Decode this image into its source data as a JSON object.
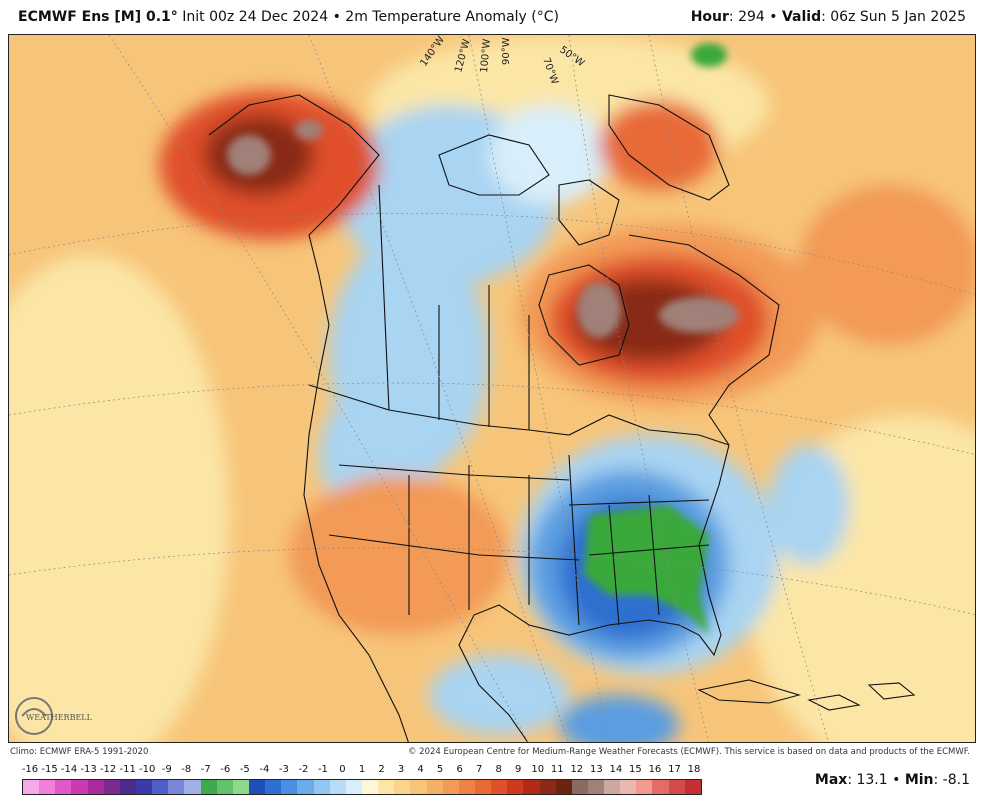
{
  "header": {
    "model_name": "ECMWF Ens [M] 0.1",
    "degree_mark": "°",
    "init_label": " Init 00z 24 Dec 2024 • 2m Temperature Anomaly (°C)",
    "hour_label": "Hour",
    "hour_value": ": 294 • ",
    "valid_label": "Valid",
    "valid_value": ": 06z Sun 5 Jan 2025"
  },
  "map": {
    "longitude_labels": [
      "140°W",
      "120°W",
      "100°W",
      "90°W",
      "70°W",
      "50°W"
    ],
    "palette": {
      "ocean_warm": "#f7c57a",
      "ocean_pale": "#fbe6a6",
      "cold_light": "#a9d4f2",
      "cold_mid": "#5a9de0",
      "cold_deep": "#2f6fd0",
      "very_cold": "#3aa83a",
      "warm_mid": "#f29a57",
      "warm_hot": "#e0502a",
      "warm_extreme": "#8a2a18",
      "warm_peak": "#a08078",
      "border": "#111111"
    }
  },
  "footer": {
    "climo": "Climo: ECMWF ERA-5 1991-2020",
    "copyright": "© 2024 European Centre for Medium-Range Weather Forecasts (ECMWF). This service is based on data and products of the ECMWF."
  },
  "scale": {
    "ticks": [
      "-16",
      "-15",
      "-14",
      "-13",
      "-12",
      "-11",
      "-10",
      "-9",
      "-8",
      "-7",
      "-6",
      "-5",
      "-4",
      "-3",
      "-2",
      "-1",
      "0",
      "1",
      "2",
      "3",
      "4",
      "5",
      "6",
      "7",
      "8",
      "9",
      "10",
      "11",
      "12",
      "13",
      "14",
      "15",
      "16",
      "17",
      "18"
    ],
    "colors": [
      "#f7a8e8",
      "#ef7fd9",
      "#e059c8",
      "#c93ab3",
      "#a92b9c",
      "#7d2a8e",
      "#4a2c8c",
      "#3a3aa8",
      "#4f5fc7",
      "#7c86d8",
      "#9fb0e4",
      "#3faa4a",
      "#62c16a",
      "#8fd68f",
      "#1f4fb8",
      "#2f6fd0",
      "#4a8ee0",
      "#6cabe9",
      "#92c6f0",
      "#b8dcf5",
      "#d8eefa",
      "#fdf6d8",
      "#fbe6a6",
      "#f8d58a",
      "#f7c57a",
      "#f4b066",
      "#f29a57",
      "#ee8346",
      "#e86a37",
      "#e0502a",
      "#cc3a20",
      "#b02a18",
      "#8a2a18",
      "#6a2410",
      "#8a6a62",
      "#a08078",
      "#c9a9a2",
      "#e9b9b0",
      "#f29a8e",
      "#e26d65",
      "#d24c4a",
      "#c42e35"
    ]
  },
  "maxmin": {
    "max_label": "Max",
    "max_value": ": 13.1 • ",
    "min_label": "Min",
    "min_value": ": -8.1"
  },
  "logo": {
    "text": "WEATHERBELL"
  }
}
